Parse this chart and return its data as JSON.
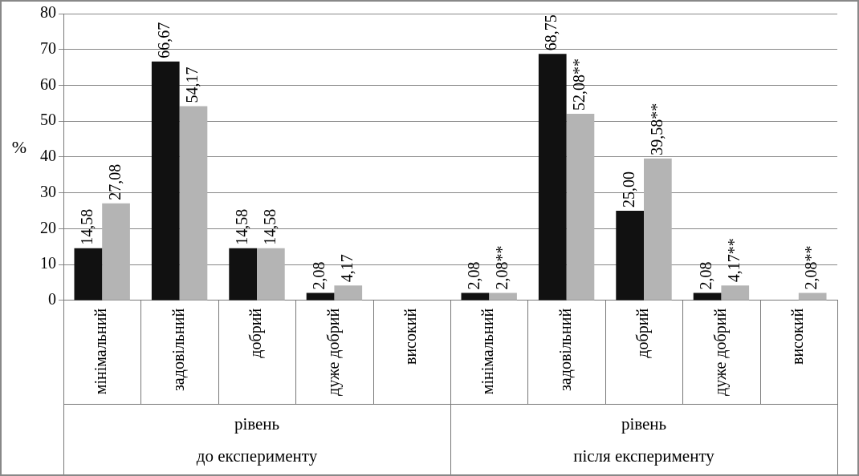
{
  "chart_data": {
    "type": "bar",
    "ylabel": "%",
    "categories": [
      "мінімальний",
      "задовільний",
      "добрий",
      "дуже добрий",
      "високий",
      "мінімальний",
      "задовільний",
      "добрий",
      "дуже добрий",
      "високий"
    ],
    "series": [
      {
        "color": "#111111",
        "values": [
          14.58,
          66.67,
          14.58,
          2.08,
          null,
          2.08,
          68.75,
          25.0,
          2.08,
          null
        ],
        "value_labels": [
          "14,58",
          "66,67",
          "14,58",
          "2,08",
          null,
          "2,08",
          "68,75",
          "25,00",
          "2,08",
          null
        ]
      },
      {
        "color": "#b4b4b4",
        "values": [
          27.08,
          54.17,
          14.58,
          4.17,
          null,
          2.08,
          52.08,
          39.58,
          4.17,
          2.08
        ],
        "value_labels": [
          "27,08",
          "54,17",
          "14,58",
          "4,17",
          null,
          "2,08**",
          "52,08**",
          "39,58**",
          "4,17**",
          "2,08**"
        ]
      }
    ],
    "ylim": [
      0,
      80
    ],
    "yticks": [
      0,
      10,
      20,
      30,
      40,
      50,
      60,
      70,
      80
    ],
    "grid": "y",
    "annotations": [
      "рівень",
      "до експерименту",
      "рівень",
      "після експерименту"
    ]
  }
}
